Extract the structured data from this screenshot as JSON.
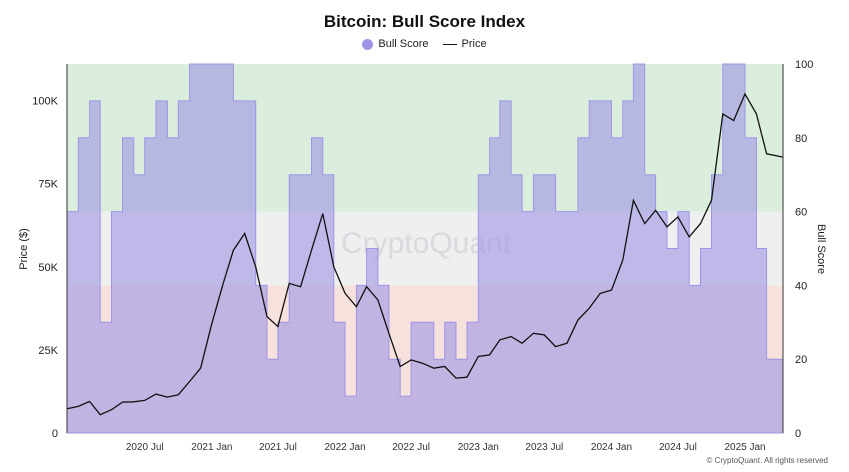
{
  "title": "Bitcoin: Bull Score Index",
  "watermark": "CryptoQuant",
  "footer": "© CryptoQuant. All rights reserved",
  "colors": {
    "bull_score": "#9e95e6",
    "price": "#111111",
    "zone_high": "#dbeedd",
    "zone_mid": "#efefef",
    "zone_low": "#f6e1dc"
  },
  "chart_data": {
    "type": "area",
    "title": "Bitcoin: Bull Score Index",
    "legend_position": "top-center",
    "grid": false,
    "x_ticks": [
      "2020 Jul",
      "2021 Jan",
      "2021 Jul",
      "2022 Jan",
      "2022 Jul",
      "2023 Jan",
      "2023 Jul",
      "2024 Jan",
      "2024 Jul",
      "2025 Jan"
    ],
    "x_range": [
      "2019-12-01",
      "2025-04-15"
    ],
    "y_left": {
      "label": "Price ($)",
      "ticks": [
        "0",
        "25K",
        "50K",
        "75K",
        "100K"
      ],
      "range": [
        0,
        111000
      ]
    },
    "y_right": {
      "label": "Bull Score",
      "ticks": [
        "0",
        "20",
        "40",
        "60",
        "80",
        "100"
      ],
      "range": [
        0,
        100
      ]
    },
    "zones": [
      {
        "from": 0,
        "to": 40,
        "label": ""
      },
      {
        "from": 40,
        "to": 60,
        "label": ""
      },
      {
        "from": 60,
        "to": 100,
        "label": ""
      }
    ],
    "series": [
      {
        "name": "Bull Score",
        "axis": "right",
        "kind": "area",
        "points": [
          [
            "2019-12-01",
            60
          ],
          [
            "2020-01-01",
            80
          ],
          [
            "2020-02-01",
            90
          ],
          [
            "2020-03-01",
            30
          ],
          [
            "2020-04-01",
            60
          ],
          [
            "2020-05-01",
            80
          ],
          [
            "2020-06-01",
            70
          ],
          [
            "2020-07-01",
            80
          ],
          [
            "2020-08-01",
            90
          ],
          [
            "2020-09-01",
            80
          ],
          [
            "2020-10-01",
            90
          ],
          [
            "2020-11-01",
            100
          ],
          [
            "2020-12-01",
            100
          ],
          [
            "2021-01-01",
            100
          ],
          [
            "2021-02-01",
            100
          ],
          [
            "2021-03-01",
            90
          ],
          [
            "2021-04-01",
            90
          ],
          [
            "2021-05-01",
            40
          ],
          [
            "2021-06-01",
            20
          ],
          [
            "2021-07-01",
            30
          ],
          [
            "2021-08-01",
            70
          ],
          [
            "2021-09-01",
            70
          ],
          [
            "2021-10-01",
            80
          ],
          [
            "2021-11-01",
            70
          ],
          [
            "2021-12-01",
            30
          ],
          [
            "2022-01-01",
            10
          ],
          [
            "2022-02-01",
            40
          ],
          [
            "2022-03-01",
            50
          ],
          [
            "2022-04-01",
            40
          ],
          [
            "2022-05-01",
            20
          ],
          [
            "2022-06-01",
            10
          ],
          [
            "2022-07-01",
            30
          ],
          [
            "2022-08-01",
            30
          ],
          [
            "2022-09-01",
            20
          ],
          [
            "2022-10-01",
            30
          ],
          [
            "2022-11-01",
            20
          ],
          [
            "2022-12-01",
            30
          ],
          [
            "2023-01-01",
            70
          ],
          [
            "2023-02-01",
            80
          ],
          [
            "2023-03-01",
            90
          ],
          [
            "2023-04-01",
            70
          ],
          [
            "2023-05-01",
            60
          ],
          [
            "2023-06-01",
            70
          ],
          [
            "2023-07-01",
            70
          ],
          [
            "2023-08-01",
            60
          ],
          [
            "2023-09-01",
            60
          ],
          [
            "2023-10-01",
            80
          ],
          [
            "2023-11-01",
            90
          ],
          [
            "2023-12-01",
            90
          ],
          [
            "2024-01-01",
            80
          ],
          [
            "2024-02-01",
            90
          ],
          [
            "2024-03-01",
            100
          ],
          [
            "2024-04-01",
            70
          ],
          [
            "2024-05-01",
            60
          ],
          [
            "2024-06-01",
            50
          ],
          [
            "2024-07-01",
            60
          ],
          [
            "2024-08-01",
            40
          ],
          [
            "2024-09-01",
            50
          ],
          [
            "2024-10-01",
            70
          ],
          [
            "2024-11-01",
            100
          ],
          [
            "2024-12-01",
            100
          ],
          [
            "2025-01-01",
            80
          ],
          [
            "2025-02-01",
            50
          ],
          [
            "2025-03-01",
            20
          ],
          [
            "2025-04-15",
            10
          ]
        ]
      },
      {
        "name": "Price",
        "axis": "left",
        "kind": "line",
        "points": [
          [
            "2019-12-01",
            7300
          ],
          [
            "2020-01-01",
            8000
          ],
          [
            "2020-02-01",
            9500
          ],
          [
            "2020-03-01",
            5500
          ],
          [
            "2020-04-01",
            7000
          ],
          [
            "2020-05-01",
            9300
          ],
          [
            "2020-06-01",
            9400
          ],
          [
            "2020-07-01",
            9800
          ],
          [
            "2020-08-01",
            11700
          ],
          [
            "2020-09-01",
            10800
          ],
          [
            "2020-10-01",
            11500
          ],
          [
            "2020-11-01",
            15500
          ],
          [
            "2020-12-01",
            19500
          ],
          [
            "2021-01-01",
            33000
          ],
          [
            "2021-02-01",
            45000
          ],
          [
            "2021-03-01",
            55000
          ],
          [
            "2021-04-01",
            60000
          ],
          [
            "2021-05-01",
            50000
          ],
          [
            "2021-06-01",
            35000
          ],
          [
            "2021-07-01",
            32000
          ],
          [
            "2021-08-01",
            45000
          ],
          [
            "2021-09-01",
            44000
          ],
          [
            "2021-10-01",
            55000
          ],
          [
            "2021-11-01",
            66000
          ],
          [
            "2021-12-01",
            50000
          ],
          [
            "2022-01-01",
            42000
          ],
          [
            "2022-02-01",
            38000
          ],
          [
            "2022-03-01",
            44000
          ],
          [
            "2022-04-01",
            40000
          ],
          [
            "2022-05-01",
            30000
          ],
          [
            "2022-06-01",
            20000
          ],
          [
            "2022-07-01",
            22000
          ],
          [
            "2022-08-01",
            21000
          ],
          [
            "2022-09-01",
            19500
          ],
          [
            "2022-10-01",
            20000
          ],
          [
            "2022-11-01",
            16500
          ],
          [
            "2022-12-01",
            16800
          ],
          [
            "2023-01-01",
            23000
          ],
          [
            "2023-02-01",
            23500
          ],
          [
            "2023-03-01",
            28000
          ],
          [
            "2023-04-01",
            29000
          ],
          [
            "2023-05-01",
            27000
          ],
          [
            "2023-06-01",
            30000
          ],
          [
            "2023-07-01",
            29500
          ],
          [
            "2023-08-01",
            26000
          ],
          [
            "2023-09-01",
            27000
          ],
          [
            "2023-10-01",
            34000
          ],
          [
            "2023-11-01",
            37500
          ],
          [
            "2023-12-01",
            42000
          ],
          [
            "2024-01-01",
            43000
          ],
          [
            "2024-02-01",
            52000
          ],
          [
            "2024-03-01",
            70000
          ],
          [
            "2024-04-01",
            63000
          ],
          [
            "2024-05-01",
            67000
          ],
          [
            "2024-06-01",
            62000
          ],
          [
            "2024-07-01",
            65000
          ],
          [
            "2024-08-01",
            59000
          ],
          [
            "2024-09-01",
            63000
          ],
          [
            "2024-10-01",
            70000
          ],
          [
            "2024-11-01",
            96000
          ],
          [
            "2024-12-01",
            94000
          ],
          [
            "2025-01-01",
            102000
          ],
          [
            "2025-02-01",
            96000
          ],
          [
            "2025-03-01",
            84000
          ],
          [
            "2025-04-15",
            83000
          ]
        ]
      }
    ]
  }
}
